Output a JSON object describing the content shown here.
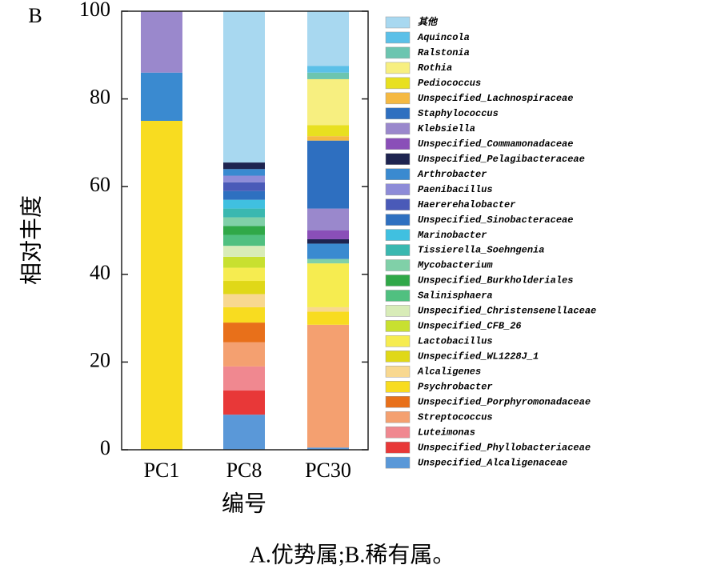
{
  "chart_data": {
    "type": "stacked-bar",
    "panel_label": "B",
    "ylabel": "相对丰度",
    "xlabel": "编号",
    "caption": "A.优势属;B.稀有属。",
    "categories": [
      "PC1",
      "PC8",
      "PC30"
    ],
    "ylim": [
      0,
      100
    ],
    "yticks": [
      0,
      20,
      40,
      60,
      80,
      100
    ],
    "series": [
      {
        "name": "Unspecified_Alcaligenaceae",
        "color": "#5a98d8",
        "values": [
          0,
          8,
          0.5
        ]
      },
      {
        "name": "Unspecified_Phyllobacteriaceae",
        "color": "#e83838",
        "values": [
          0,
          5.5,
          0
        ]
      },
      {
        "name": "Luteimonas",
        "color": "#f08890",
        "values": [
          0,
          5.5,
          0
        ]
      },
      {
        "name": "Streptococcus",
        "color": "#f4a070",
        "values": [
          0,
          5.5,
          28
        ]
      },
      {
        "name": "Unspecified_Porphyromonadaceae",
        "color": "#e8701a",
        "values": [
          0,
          4.5,
          0
        ]
      },
      {
        "name": "Psychrobacter",
        "color": "#f8dc20",
        "values": [
          75,
          3.5,
          3
        ]
      },
      {
        "name": "Alcaligenes",
        "color": "#f8d890",
        "values": [
          0,
          3,
          1
        ]
      },
      {
        "name": "Unspecified_WL1228J_1",
        "color": "#e0d818",
        "values": [
          0,
          3,
          0
        ]
      },
      {
        "name": "Lactobacillus",
        "color": "#f6ec50",
        "values": [
          0,
          3,
          10
        ]
      },
      {
        "name": "Unspecified_CFB_26",
        "color": "#c8e030",
        "values": [
          0,
          2.5,
          0
        ]
      },
      {
        "name": "Unspecified_Christensenellaceae",
        "color": "#d8ecb8",
        "values": [
          0,
          2.5,
          0
        ]
      },
      {
        "name": "Salinisphaera",
        "color": "#50c080",
        "values": [
          0,
          2.5,
          0
        ]
      },
      {
        "name": "Unspecified_Burkholderiales",
        "color": "#30a848",
        "values": [
          0,
          2,
          0
        ]
      },
      {
        "name": "Mycobacterium",
        "color": "#80d0a8",
        "values": [
          0,
          2,
          1
        ]
      },
      {
        "name": "Tissierella_Soehngenia",
        "color": "#3ab8b0",
        "values": [
          0,
          2,
          0
        ]
      },
      {
        "name": "Marinobacter",
        "color": "#40c0e0",
        "values": [
          0,
          2,
          0
        ]
      },
      {
        "name": "Unspecified_Sinobacteraceae",
        "color": "#2e70c0",
        "values": [
          0,
          2,
          0
        ]
      },
      {
        "name": "Haererehalobacter",
        "color": "#4a5ab8",
        "values": [
          0,
          2,
          0
        ]
      },
      {
        "name": "Paenibacillus",
        "color": "#8e8cd8",
        "values": [
          0,
          1.5,
          0
        ]
      },
      {
        "name": "Arthrobacter",
        "color": "#3a8ad0",
        "values": [
          11,
          1.5,
          3.5
        ]
      },
      {
        "name": "Unspecified_Pelagibacteraceae",
        "color": "#1e2450",
        "values": [
          0,
          1.5,
          1
        ]
      },
      {
        "name": "Unspecified_Commamonadaceae",
        "color": "#8a4fb8",
        "values": [
          0,
          0,
          2
        ]
      },
      {
        "name": "Klebsiella",
        "color": "#9a88cc",
        "values": [
          14,
          0,
          5
        ]
      },
      {
        "name": "Staphylococcus",
        "color": "#2e6fc0",
        "values": [
          0,
          0,
          15.5
        ]
      },
      {
        "name": "Unspecified_Lachnospiraceae",
        "color": "#f5b942",
        "values": [
          0,
          0,
          1
        ]
      },
      {
        "name": "Pediococcus",
        "color": "#e8e020",
        "values": [
          0,
          0,
          2.5
        ]
      },
      {
        "name": "Rothia",
        "color": "#f7ef80",
        "values": [
          0,
          0,
          10.5
        ]
      },
      {
        "name": "Ralstonia",
        "color": "#6cc5b0",
        "values": [
          0,
          0,
          1.5
        ]
      },
      {
        "name": "Aquincola",
        "color": "#5bc0e8",
        "values": [
          0,
          0,
          1.5
        ]
      },
      {
        "name": "其他",
        "color": "#a8d8f0",
        "values": [
          0,
          34.5,
          12.5
        ]
      }
    ]
  }
}
